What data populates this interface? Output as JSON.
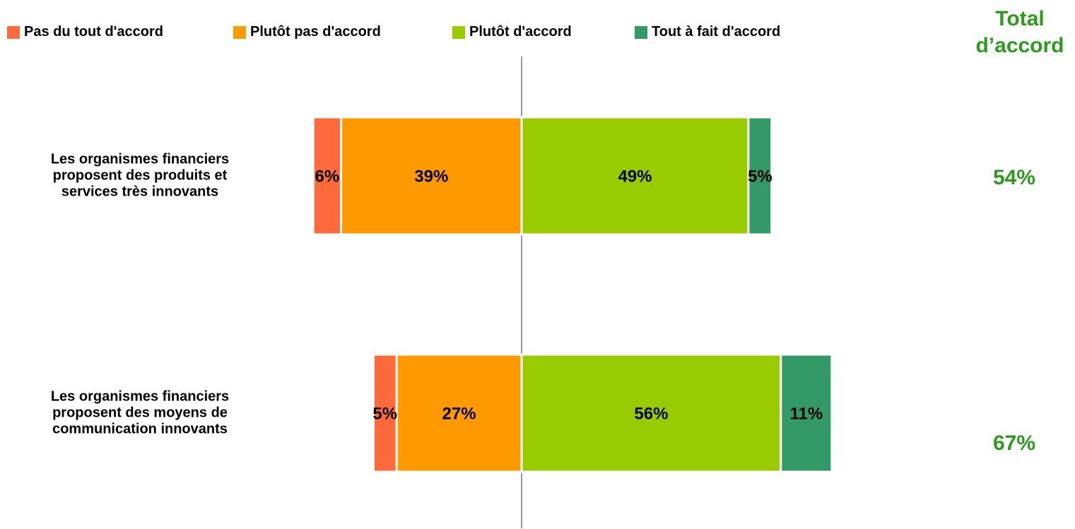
{
  "chart_data": {
    "type": "diverging_bar",
    "categories": [
      "Les organismes financiers proposent des produits et services très innovants",
      "Les organismes financiers proposent des moyens de communication innovants"
    ],
    "series": [
      {
        "name": "Pas du tout d'accord",
        "color": "#ff6a3d",
        "side": "left",
        "values": [
          6,
          5
        ],
        "value_labels": [
          "6%",
          "5%"
        ]
      },
      {
        "name": "Plutôt pas d'accord",
        "color": "#ff9900",
        "side": "left",
        "values": [
          39,
          27
        ],
        "value_labels": [
          "39%",
          "27%"
        ]
      },
      {
        "name": "Plutôt d'accord",
        "color": "#99cc00",
        "side": "right",
        "values": [
          49,
          56
        ],
        "value_labels": [
          "49%",
          "56%"
        ]
      },
      {
        "name": "Tout à fait d'accord",
        "color": "#339966",
        "side": "right",
        "values": [
          5,
          11
        ],
        "value_labels": [
          "5%",
          "11%"
        ]
      }
    ],
    "totals_title": "Total d’accord",
    "totals": [
      54,
      67
    ],
    "total_labels": [
      "54%",
      "67%"
    ],
    "totals_color": "#2e9a1e",
    "legend": "top"
  }
}
